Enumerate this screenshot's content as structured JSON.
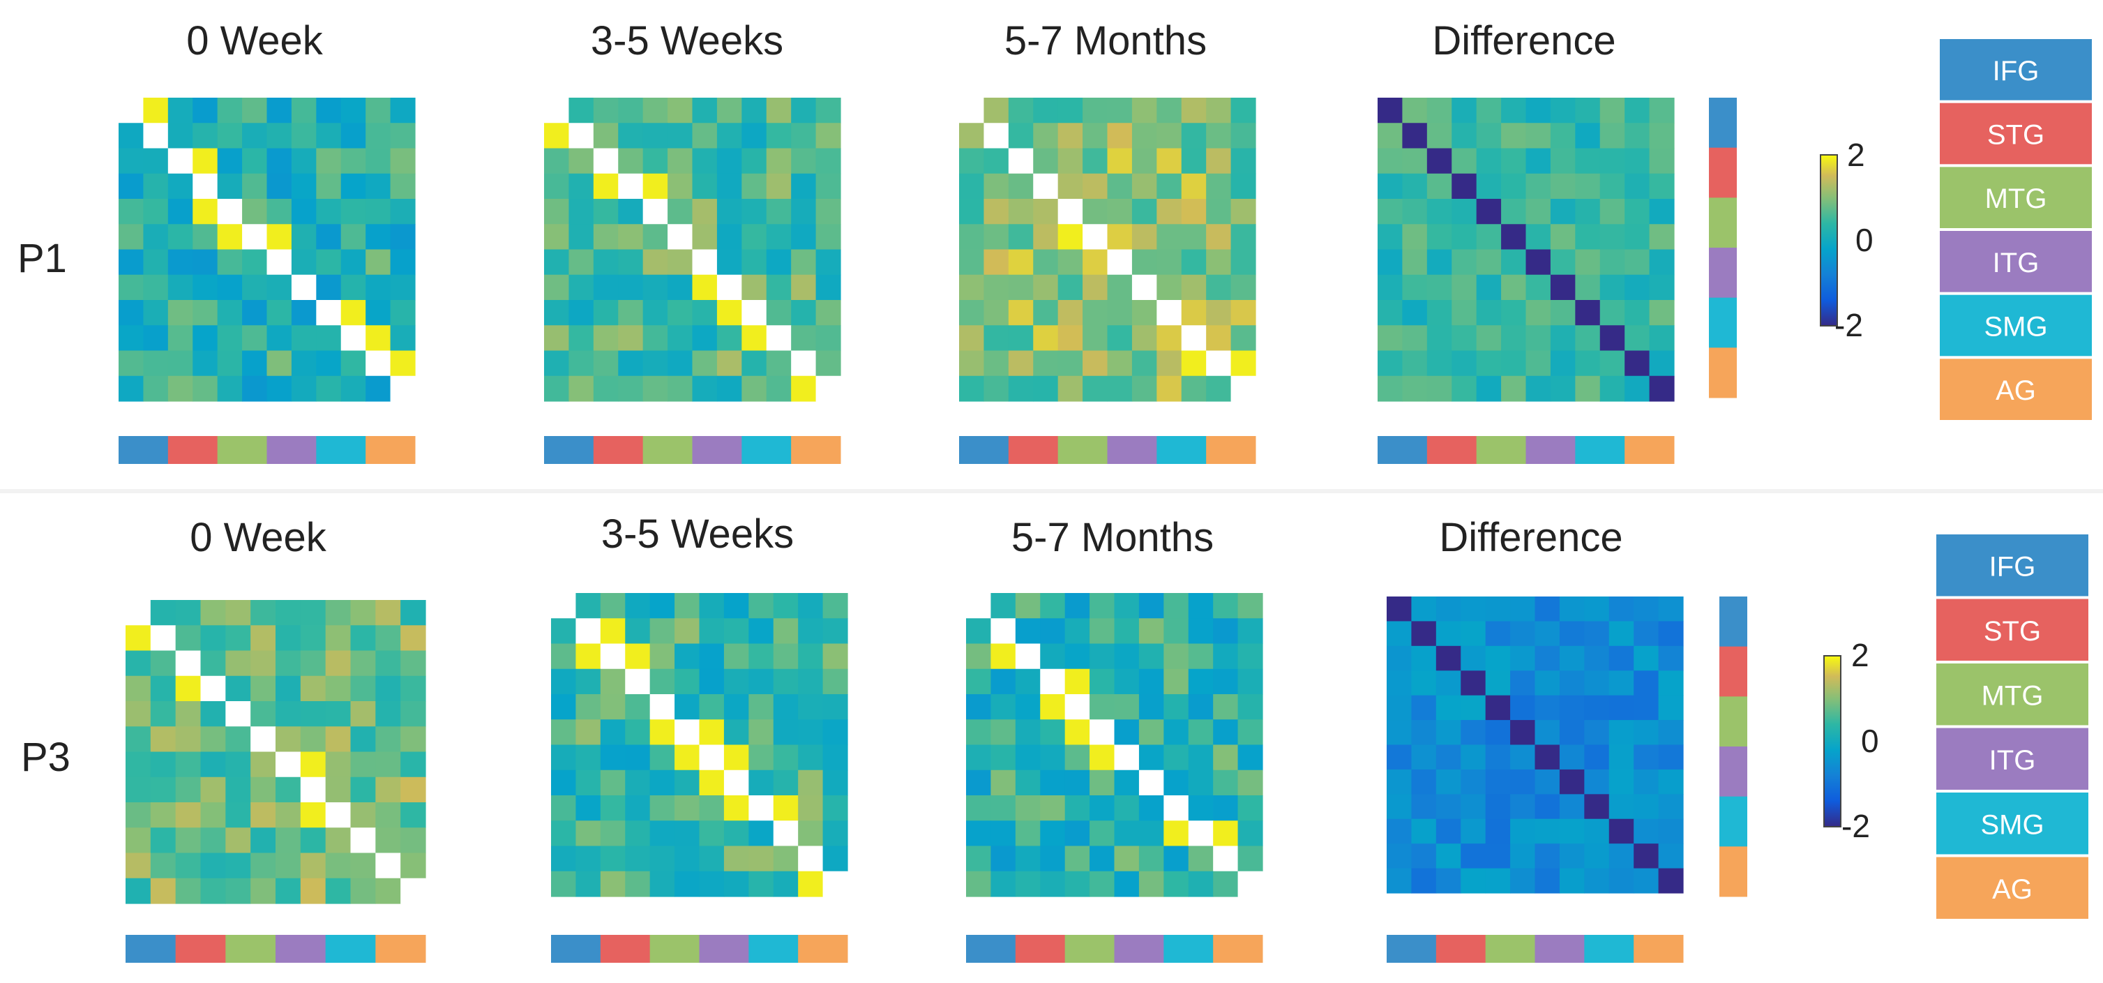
{
  "chart_data": {
    "type": "heatmap",
    "column_titles": [
      "0 Week",
      "3-5 Weeks",
      "5-7 Months",
      "Difference"
    ],
    "colorbar": {
      "ticks": [
        2,
        0,
        -2
      ],
      "range": [
        -2,
        2
      ],
      "colormap": "parula"
    },
    "regions": [
      {
        "name": "IFG",
        "color": "#3b8fc9"
      },
      {
        "name": "STG",
        "color": "#e6625f"
      },
      {
        "name": "MTG",
        "color": "#9bc36a"
      },
      {
        "name": "ITG",
        "color": "#9b7cc0"
      },
      {
        "name": "SMG",
        "color": "#1fb8d4"
      },
      {
        "name": "AG",
        "color": "#f6a55a"
      }
    ],
    "matrix_size": 12,
    "panels": [
      {
        "label": "P1",
        "matrices": [
          {
            "title": "0 Week",
            "mean": 0.25,
            "seed": 11
          },
          {
            "title": "3-5 Weeks",
            "mean": 0.55,
            "seed": 23
          },
          {
            "title": "5-7 Months",
            "mean": 1.0,
            "seed": 37
          },
          {
            "title": "Difference",
            "mean": 0.4,
            "seed": 41
          }
        ]
      },
      {
        "label": "P3",
        "matrices": [
          {
            "title": "0 Week",
            "mean": 0.85,
            "seed": 53
          },
          {
            "title": "3-5 Weeks",
            "mean": 0.45,
            "seed": 67
          },
          {
            "title": "5-7 Months",
            "mean": 0.3,
            "seed": 79
          },
          {
            "title": "Difference",
            "mean": -0.6,
            "seed": 83
          }
        ]
      }
    ]
  }
}
